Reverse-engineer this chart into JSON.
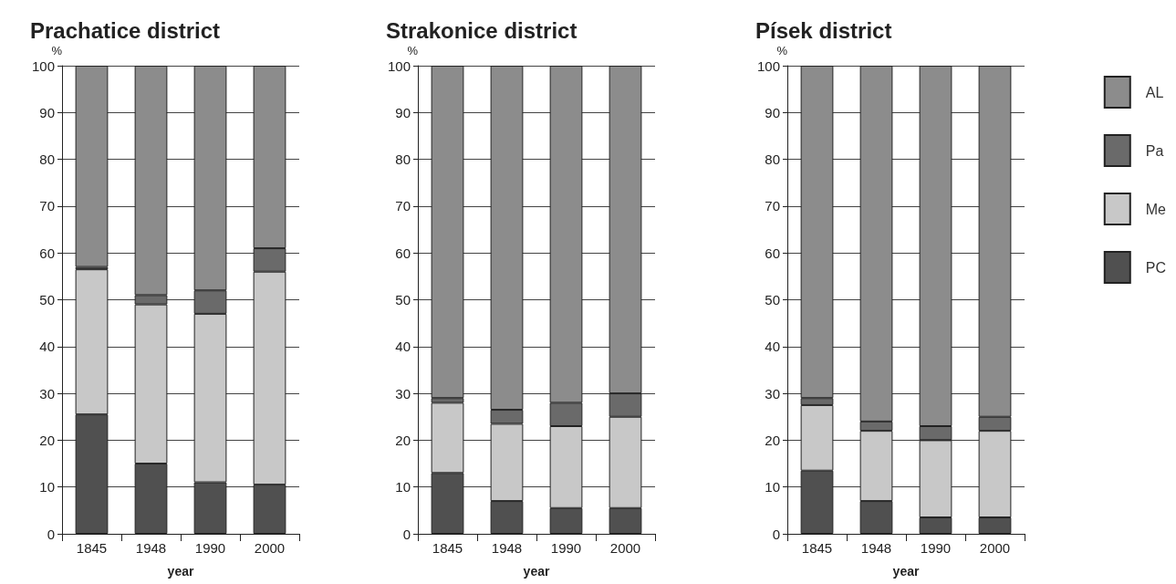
{
  "chart_data": [
    {
      "type": "bar",
      "stacked": true,
      "title": "Prachatice district",
      "xlabel": "year",
      "ylabel": "%",
      "categories": [
        "1845",
        "1948",
        "1990",
        "2000"
      ],
      "ylim": [
        0,
        100
      ],
      "yticks": [
        0,
        10,
        20,
        30,
        40,
        50,
        60,
        70,
        80,
        90,
        100
      ],
      "grid": "y",
      "legend": false,
      "series": [
        {
          "color": "#505050",
          "values": [
            25.5,
            15,
            11,
            10.5
          ]
        },
        {
          "color": "#c8c8c8",
          "values": [
            31,
            34,
            36,
            45.5
          ]
        },
        {
          "color": "#6a6a6a",
          "values": [
            0.5,
            2,
            5,
            5
          ]
        },
        {
          "color": "#8c8c8c",
          "values": [
            43,
            49,
            48,
            39
          ]
        }
      ]
    },
    {
      "type": "bar",
      "stacked": true,
      "title": "Strakonice district",
      "xlabel": "year",
      "ylabel": "%",
      "categories": [
        "1845",
        "1948",
        "1990",
        "2000"
      ],
      "ylim": [
        0,
        100
      ],
      "yticks": [
        0,
        10,
        20,
        30,
        40,
        50,
        60,
        70,
        80,
        90,
        100
      ],
      "grid": "y",
      "legend": false,
      "series": [
        {
          "color": "#505050",
          "values": [
            13,
            7,
            5.5,
            5.5
          ]
        },
        {
          "color": "#c8c8c8",
          "values": [
            15,
            16.5,
            17.5,
            19.5
          ]
        },
        {
          "color": "#6a6a6a",
          "values": [
            1,
            3,
            5,
            5
          ]
        },
        {
          "color": "#8c8c8c",
          "values": [
            71,
            73.5,
            72,
            70
          ]
        }
      ]
    },
    {
      "type": "bar",
      "stacked": true,
      "title": "Písek district",
      "xlabel": "year",
      "ylabel": "%",
      "categories": [
        "1845",
        "1948",
        "1990",
        "2000"
      ],
      "ylim": [
        0,
        100
      ],
      "yticks": [
        0,
        10,
        20,
        30,
        40,
        50,
        60,
        70,
        80,
        90,
        100
      ],
      "grid": "y",
      "legend": "right",
      "series": [
        {
          "name": "PC",
          "color": "#505050",
          "values": [
            13.5,
            7,
            3.5,
            3.5
          ]
        },
        {
          "name": "Me",
          "color": "#c8c8c8",
          "values": [
            14,
            15,
            16.5,
            18.5
          ]
        },
        {
          "name": "Pa",
          "color": "#6a6a6a",
          "values": [
            1.5,
            2,
            3,
            3
          ]
        },
        {
          "name": "AL",
          "color": "#8c8c8c",
          "values": [
            71,
            76,
            77,
            75
          ]
        }
      ]
    }
  ]
}
